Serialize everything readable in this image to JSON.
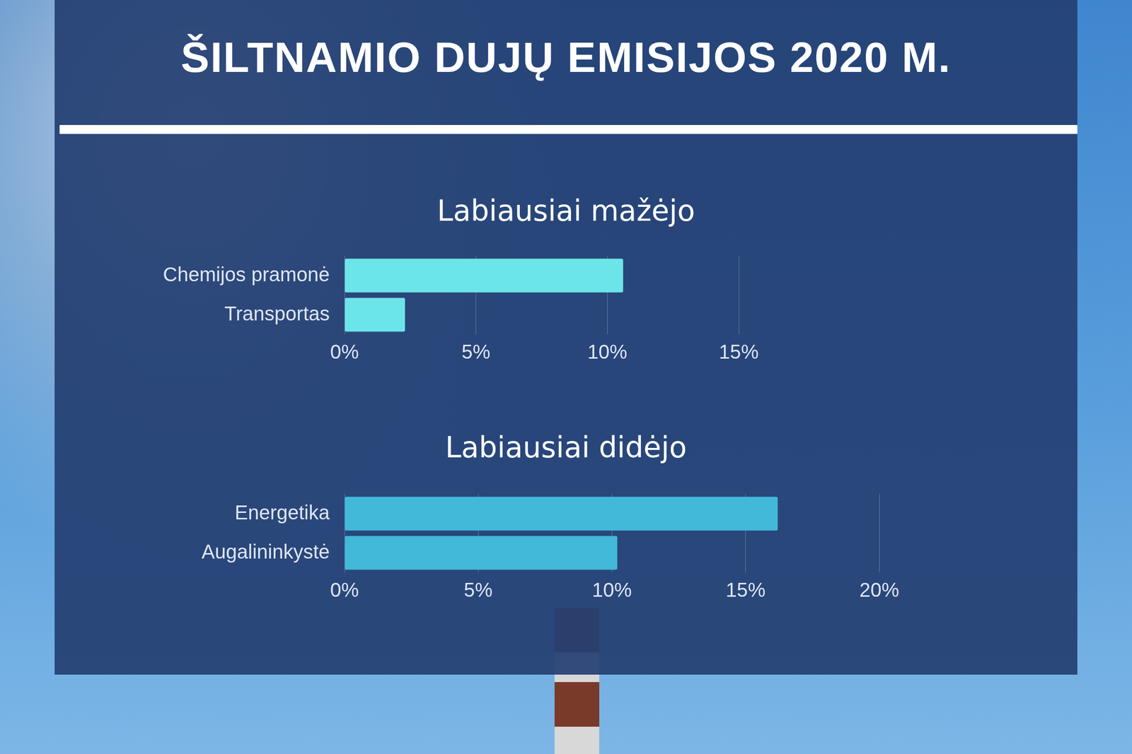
{
  "title": "ŠILTNAMIO DUJŲ EMISIJOS 2020 M.",
  "chart_data": [
    {
      "type": "bar",
      "title": "Labiausiai mažėjo",
      "orientation": "horizontal",
      "categories": [
        "Chemijos pramonė",
        "Transportas"
      ],
      "values": [
        10.6,
        2.3
      ],
      "color": "#6ce5e8",
      "xlim": [
        0,
        15
      ],
      "xticks": [
        {
          "value": 0,
          "label": "0%"
        },
        {
          "value": 5,
          "label": "5%"
        },
        {
          "value": 10,
          "label": "10%"
        },
        {
          "value": 15,
          "label": "15%"
        }
      ],
      "grid": true
    },
    {
      "type": "bar",
      "title": "Labiausiai didėjo",
      "orientation": "horizontal",
      "categories": [
        "Energetika",
        "Augalininkystė"
      ],
      "values": [
        16.2,
        10.2
      ],
      "color": "#43b9d9",
      "xlim": [
        0,
        20
      ],
      "xticks": [
        {
          "value": 0,
          "label": "0%"
        },
        {
          "value": 5,
          "label": "5%"
        },
        {
          "value": 10,
          "label": "10%"
        },
        {
          "value": 15,
          "label": "15%"
        },
        {
          "value": 20,
          "label": "20%"
        }
      ],
      "grid": true
    }
  ]
}
